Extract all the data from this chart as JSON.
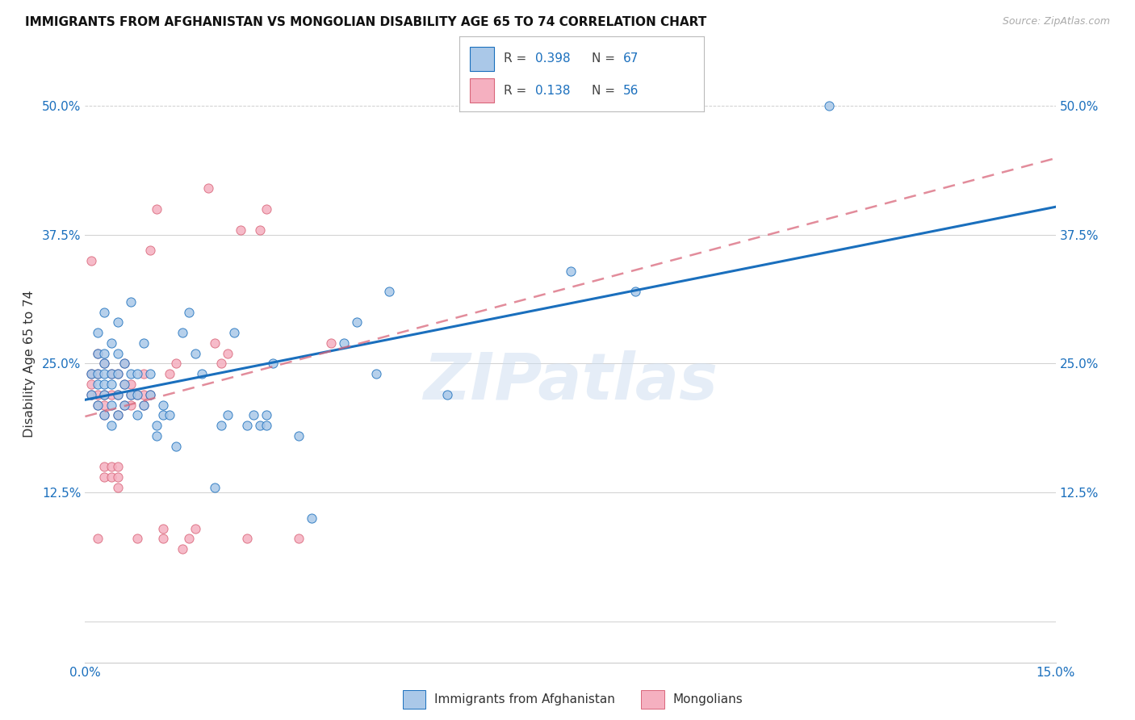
{
  "title": "IMMIGRANTS FROM AFGHANISTAN VS MONGOLIAN DISABILITY AGE 65 TO 74 CORRELATION CHART",
  "source": "Source: ZipAtlas.com",
  "ylabel": "Disability Age 65 to 74",
  "xlim": [
    0.0,
    0.15
  ],
  "ylim": [
    -0.04,
    0.54
  ],
  "plot_ylim": [
    0.0,
    0.5
  ],
  "xticks": [
    0.0,
    0.03,
    0.06,
    0.09,
    0.12,
    0.15
  ],
  "yticks": [
    0.0,
    0.125,
    0.25,
    0.375,
    0.5
  ],
  "xtick_labels": [
    "0.0%",
    "",
    "",
    "",
    "",
    "15.0%"
  ],
  "ytick_labels_left": [
    "",
    "12.5%",
    "25.0%",
    "37.5%",
    "50.0%"
  ],
  "ytick_labels_right": [
    "",
    "12.5%",
    "25.0%",
    "37.5%",
    "50.0%"
  ],
  "legend_labels_bottom": [
    "Immigrants from Afghanistan",
    "Mongolians"
  ],
  "R_afghanistan": "0.398",
  "N_afghanistan": "67",
  "R_mongolian": "0.138",
  "N_mongolian": "56",
  "color_afghanistan": "#aac8e8",
  "color_mongolian": "#f5b0c0",
  "line_color_blue": "#1a6fbd",
  "line_color_pink": "#d9667a",
  "watermark": "ZIPatlas",
  "af_x": [
    0.001,
    0.001,
    0.002,
    0.002,
    0.002,
    0.002,
    0.002,
    0.003,
    0.003,
    0.003,
    0.003,
    0.003,
    0.003,
    0.003,
    0.004,
    0.004,
    0.004,
    0.004,
    0.004,
    0.005,
    0.005,
    0.005,
    0.005,
    0.005,
    0.006,
    0.006,
    0.006,
    0.007,
    0.007,
    0.007,
    0.008,
    0.008,
    0.008,
    0.009,
    0.009,
    0.01,
    0.01,
    0.011,
    0.011,
    0.012,
    0.012,
    0.013,
    0.014,
    0.015,
    0.016,
    0.017,
    0.018,
    0.02,
    0.021,
    0.022,
    0.023,
    0.025,
    0.026,
    0.027,
    0.028,
    0.028,
    0.029,
    0.033,
    0.035,
    0.04,
    0.042,
    0.045,
    0.047,
    0.056,
    0.075,
    0.085,
    0.115
  ],
  "af_y": [
    0.22,
    0.24,
    0.21,
    0.23,
    0.24,
    0.26,
    0.28,
    0.2,
    0.22,
    0.23,
    0.24,
    0.25,
    0.26,
    0.3,
    0.19,
    0.21,
    0.23,
    0.24,
    0.27,
    0.2,
    0.22,
    0.24,
    0.26,
    0.29,
    0.21,
    0.23,
    0.25,
    0.22,
    0.24,
    0.31,
    0.2,
    0.22,
    0.24,
    0.21,
    0.27,
    0.22,
    0.24,
    0.18,
    0.19,
    0.2,
    0.21,
    0.2,
    0.17,
    0.28,
    0.3,
    0.26,
    0.24,
    0.13,
    0.19,
    0.2,
    0.28,
    0.19,
    0.2,
    0.19,
    0.19,
    0.2,
    0.25,
    0.18,
    0.1,
    0.27,
    0.29,
    0.24,
    0.32,
    0.22,
    0.34,
    0.32,
    0.5
  ],
  "mo_x": [
    0.001,
    0.001,
    0.001,
    0.001,
    0.002,
    0.002,
    0.002,
    0.002,
    0.002,
    0.003,
    0.003,
    0.003,
    0.003,
    0.003,
    0.003,
    0.004,
    0.004,
    0.004,
    0.004,
    0.005,
    0.005,
    0.005,
    0.005,
    0.005,
    0.005,
    0.006,
    0.006,
    0.006,
    0.007,
    0.007,
    0.007,
    0.008,
    0.008,
    0.009,
    0.009,
    0.009,
    0.01,
    0.01,
    0.011,
    0.012,
    0.012,
    0.013,
    0.014,
    0.015,
    0.016,
    0.017,
    0.019,
    0.02,
    0.021,
    0.022,
    0.024,
    0.025,
    0.027,
    0.028,
    0.033,
    0.038
  ],
  "mo_y": [
    0.22,
    0.23,
    0.24,
    0.35,
    0.08,
    0.21,
    0.22,
    0.24,
    0.26,
    0.14,
    0.15,
    0.2,
    0.21,
    0.22,
    0.25,
    0.14,
    0.15,
    0.22,
    0.24,
    0.13,
    0.14,
    0.15,
    0.2,
    0.22,
    0.24,
    0.21,
    0.23,
    0.25,
    0.21,
    0.22,
    0.23,
    0.08,
    0.22,
    0.21,
    0.22,
    0.24,
    0.22,
    0.36,
    0.4,
    0.08,
    0.09,
    0.24,
    0.25,
    0.07,
    0.08,
    0.09,
    0.42,
    0.27,
    0.25,
    0.26,
    0.38,
    0.08,
    0.38,
    0.4,
    0.08,
    0.27
  ]
}
